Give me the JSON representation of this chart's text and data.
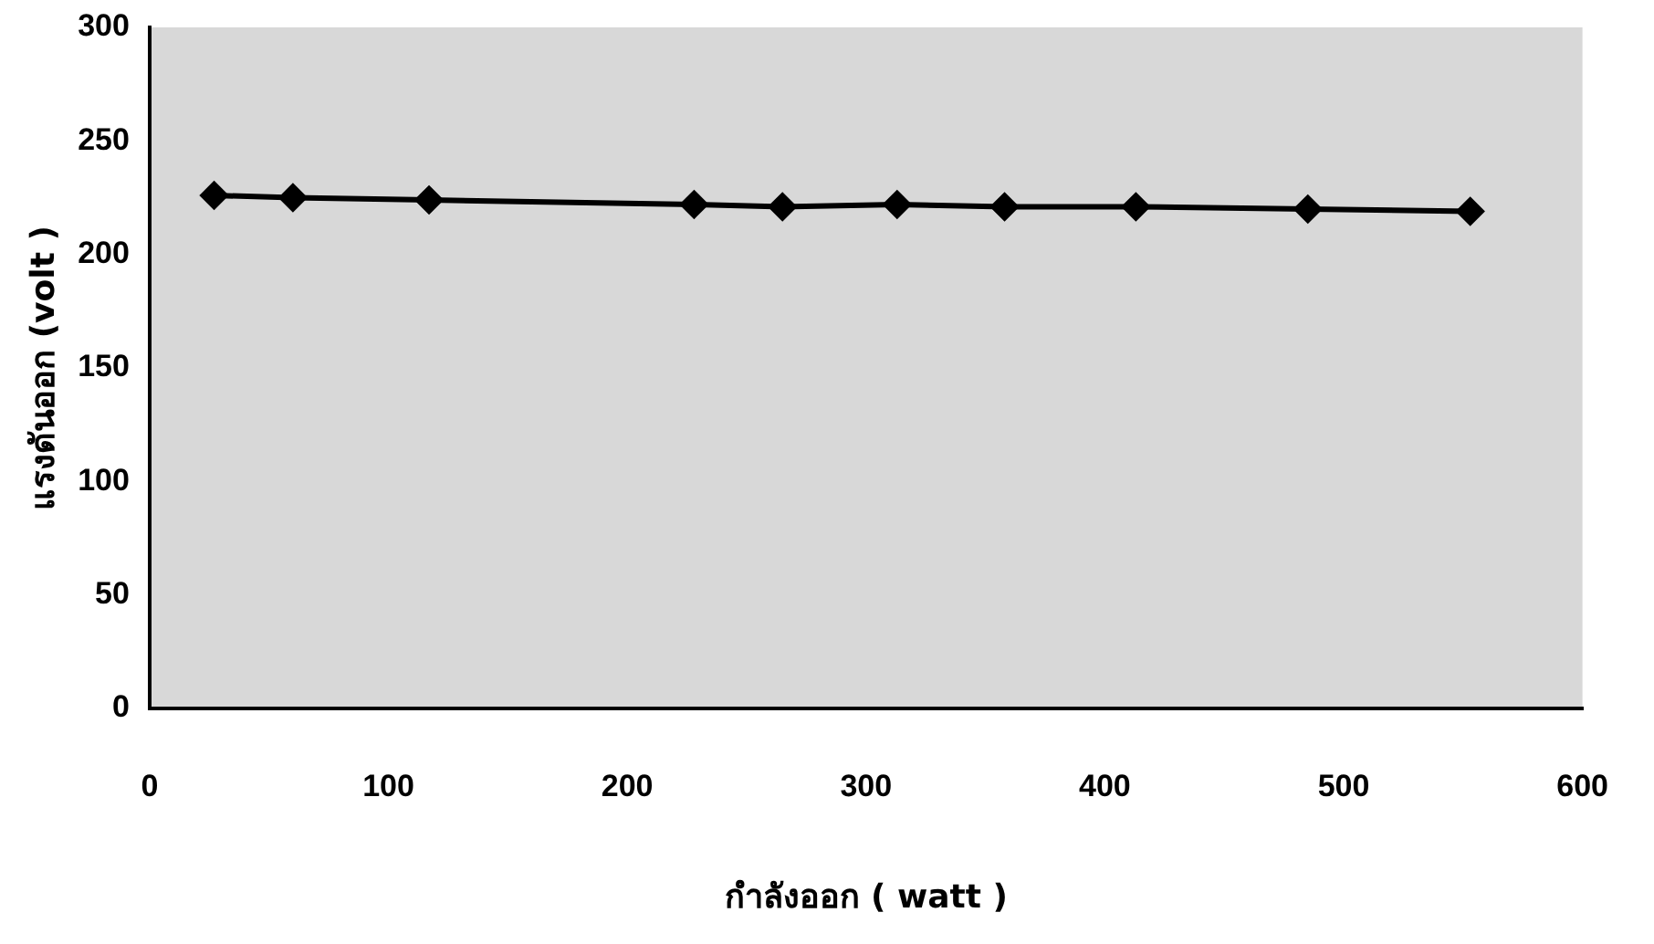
{
  "chart_data": {
    "type": "line",
    "xlabel": "กำลังออก ( watt )",
    "ylabel": "แรงดันออก (volt )",
    "x": [
      27,
      60,
      117,
      228,
      265,
      313,
      358,
      413,
      485,
      553
    ],
    "series": [
      {
        "color": "#000000",
        "values": [
          226,
          225,
          224,
          222,
          221,
          222,
          221,
          221,
          220,
          219
        ]
      }
    ],
    "xlim": [
      0,
      600
    ],
    "xticks": [
      0,
      100,
      200,
      300,
      400,
      500,
      600
    ],
    "ylim": [
      0,
      300
    ],
    "yticks": [
      0,
      50,
      100,
      150,
      200,
      250,
      300
    ],
    "grid": false,
    "legend": false,
    "marker": "diamond",
    "line_style": "solid"
  }
}
